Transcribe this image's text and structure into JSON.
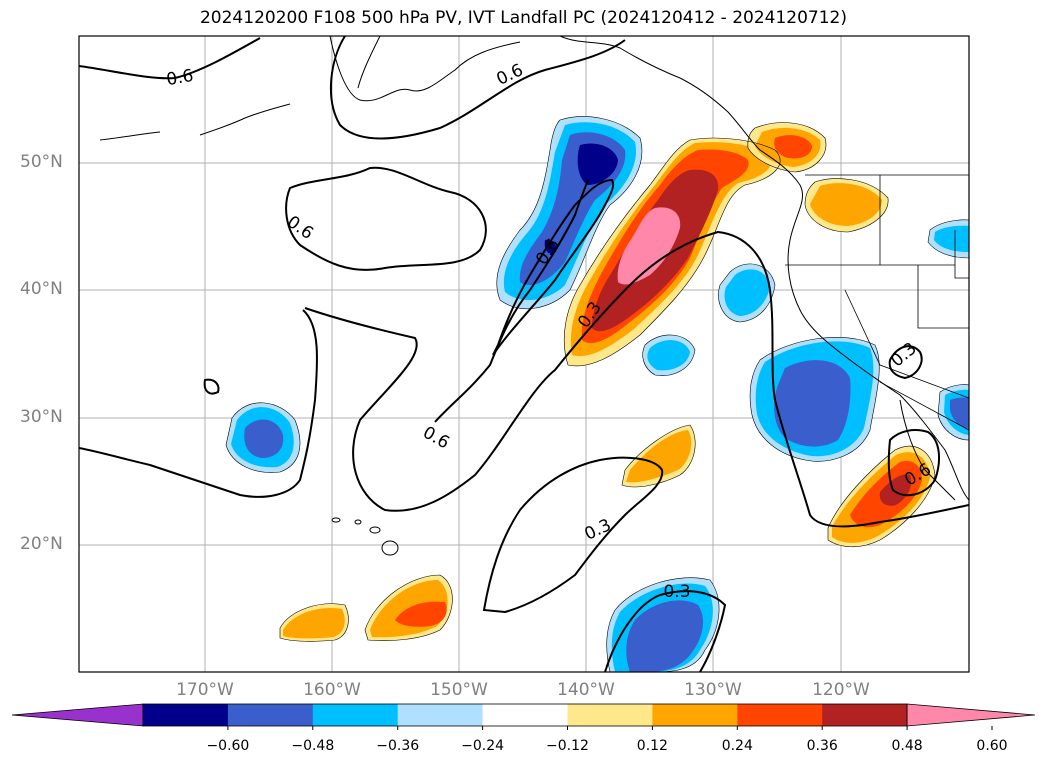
{
  "title": "2024120200 F108 500 hPa PV, IVT Landfall PC (2024120412 - 2024120712)",
  "map": {
    "lon_labels": [
      "170°W",
      "160°W",
      "150°W",
      "140°W",
      "130°W",
      "120°W"
    ],
    "lat_labels": [
      "50°N",
      "40°N",
      "30°N",
      "20°N"
    ],
    "contour_labels": [
      "0.6",
      "0.6",
      "0.6",
      "0.6",
      "0.3",
      "0.6",
      "0.3",
      "0.3",
      "0.3",
      "0.6"
    ]
  },
  "colorbar": {
    "ticks": [
      "−0.60",
      "−0.48",
      "−0.36",
      "−0.24",
      "−0.12",
      "0.12",
      "0.24",
      "0.36",
      "0.48",
      "0.60"
    ],
    "colors": [
      "#9932cc",
      "#00008b",
      "#3a5fcd",
      "#00bfff",
      "#b0e0ff",
      "#ffffff",
      "#ffe88a",
      "#ffa500",
      "#ff4500",
      "#b22222",
      "#ff88aa"
    ]
  },
  "fill_colors": {
    "neg_light": "#b0e0ff",
    "neg_mid": "#00bfff",
    "neg_dark": "#3a5fcd",
    "neg_darkest": "#00008b",
    "pos_light": "#ffe88a",
    "pos_mid": "#ffa500",
    "pos_dark": "#ff4500",
    "pos_darker": "#b22222",
    "pos_max": "#ff88aa"
  }
}
